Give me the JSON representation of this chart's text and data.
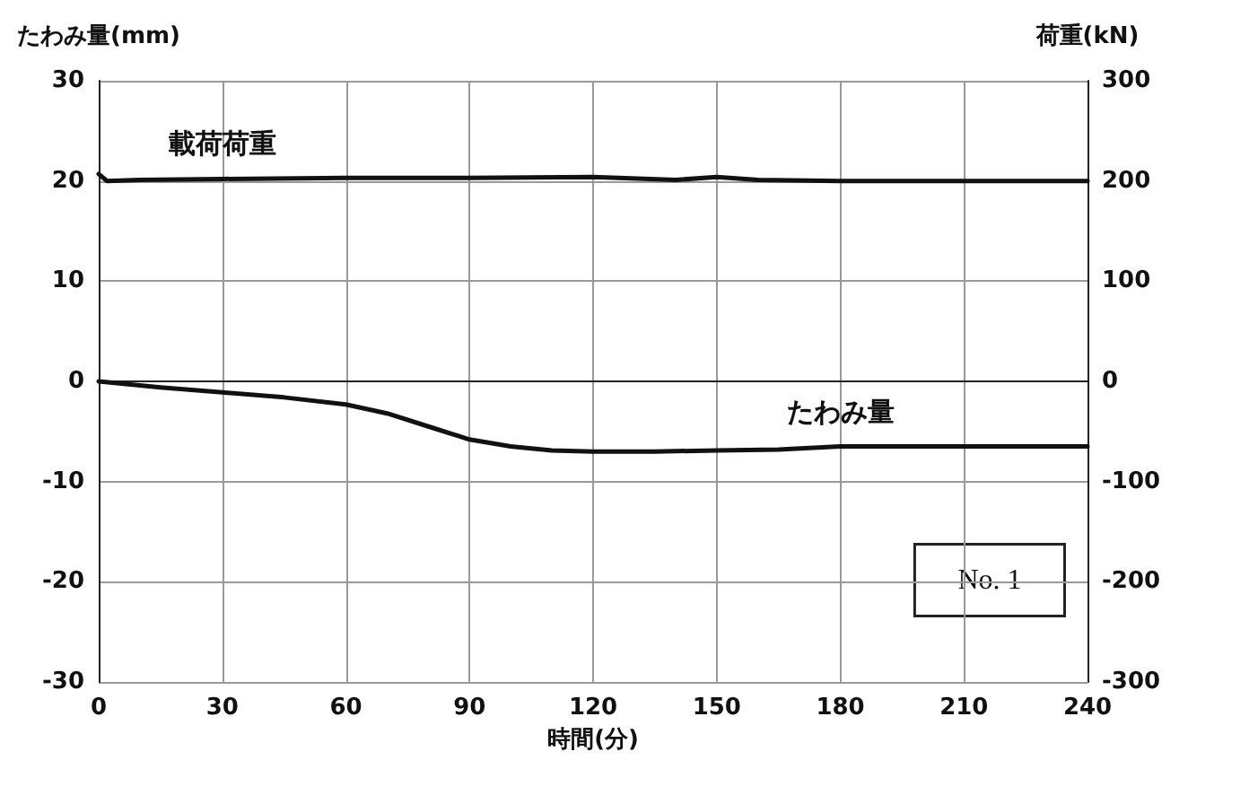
{
  "chart_data": {
    "type": "line",
    "xlabel": "時間(分)",
    "ylabel": "たわみ量(mm)",
    "y2label": "荷重(kN)",
    "xlim": [
      0,
      240
    ],
    "xticks": [
      0,
      30,
      60,
      90,
      120,
      150,
      180,
      210,
      240
    ],
    "ylim": [
      -30,
      30
    ],
    "yticks": [
      -30,
      -20,
      -10,
      0,
      10,
      20,
      30
    ],
    "y2lim": [
      -300,
      300
    ],
    "y2ticks": [
      -300,
      -200,
      -100,
      0,
      100,
      200,
      300
    ],
    "grid": true,
    "legend": false,
    "marker": "none",
    "line_style": "solid",
    "annotations": [
      "No. 1"
    ],
    "series": [
      {
        "name": "載荷荷重",
        "color": "#111111",
        "axis": "y2",
        "x": [
          0,
          2,
          10,
          30,
          60,
          90,
          120,
          140,
          150,
          160,
          180,
          210,
          240
        ],
        "values": [
          207,
          200,
          201,
          202,
          203,
          203,
          204,
          201,
          204,
          201,
          200,
          200,
          200
        ]
      },
      {
        "name": "たわみ量",
        "color": "#111111",
        "x": [
          0,
          15,
          30,
          45,
          60,
          70,
          80,
          90,
          100,
          110,
          120,
          135,
          150,
          165,
          180,
          210,
          240
        ],
        "values": [
          0,
          -0.6,
          -1.1,
          -1.6,
          -2.3,
          -3.2,
          -4.5,
          -5.8,
          -6.5,
          -6.9,
          -7.0,
          -7.0,
          -6.9,
          -6.8,
          -6.5,
          -6.5,
          -6.5
        ]
      }
    ]
  }
}
